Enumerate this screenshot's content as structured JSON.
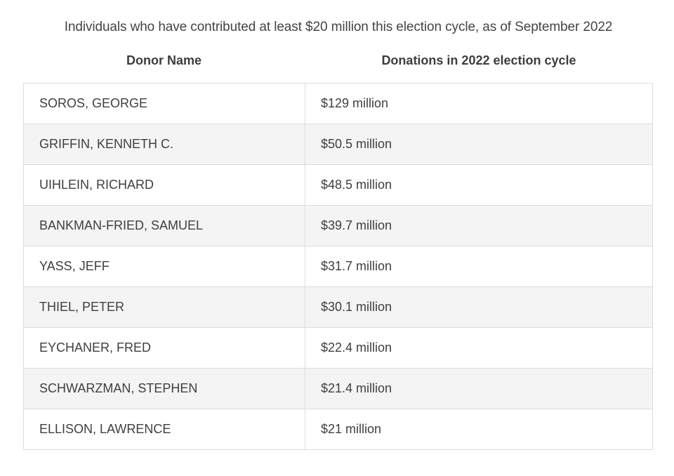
{
  "caption": "Individuals who have contributed at least $20 million this election cycle, as of September 2022",
  "columns": {
    "donor": "Donor Name",
    "donations": "Donations in 2022 election cycle"
  },
  "rows": [
    {
      "name": "SOROS, GEORGE",
      "amount": "$129 million"
    },
    {
      "name": "GRIFFIN, KENNETH C.",
      "amount": "$50.5 million"
    },
    {
      "name": "UIHLEIN, RICHARD",
      "amount": "$48.5 million"
    },
    {
      "name": "BANKMAN-FRIED, SAMUEL",
      "amount": "$39.7 million"
    },
    {
      "name": "YASS, JEFF",
      "amount": "$31.7 million"
    },
    {
      "name": "THIEL, PETER",
      "amount": "$30.1 million"
    },
    {
      "name": "EYCHANER, FRED",
      "amount": "$22.4 million"
    },
    {
      "name": "SCHWARZMAN, STEPHEN",
      "amount": "$21.4 million"
    },
    {
      "name": "ELLISON, LAWRENCE",
      "amount": "$21 million"
    }
  ]
}
